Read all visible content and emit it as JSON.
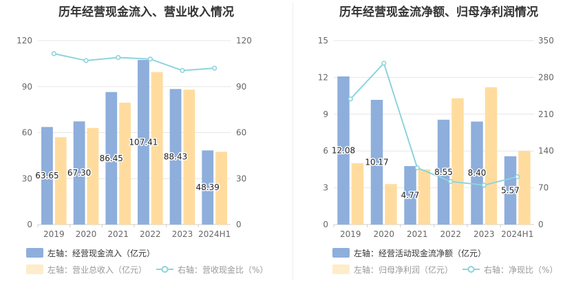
{
  "colors": {
    "bar1": "#8eaedc",
    "bar2": "#ffdc9e",
    "line": "#8dd3dc",
    "grid": "#e6e6e6",
    "axis_text": "#666666",
    "text": "#333333"
  },
  "chart_data": [
    {
      "type": "bar",
      "title": "历年经营现金流入、营业收入情况",
      "categories": [
        "2019",
        "2020",
        "2021",
        "2022",
        "2023",
        "2024H1"
      ],
      "y_left": {
        "min": 0,
        "max": 120,
        "ticks": [
          "0",
          "30",
          "60",
          "90",
          "120"
        ]
      },
      "y_right": {
        "min": 0,
        "max": 120,
        "ticks": [
          "0",
          "30",
          "60",
          "90",
          "120"
        ]
      },
      "series": [
        {
          "name": "左轴：经营现金流入（亿元）",
          "axis": "left",
          "kind": "bar",
          "values": [
            63.65,
            67.3,
            86.45,
            107.41,
            88.43,
            48.39
          ],
          "labels": [
            "63.65",
            "67.30",
            "86.45",
            "107.41",
            "88.43",
            "48.39"
          ]
        },
        {
          "name": "左轴：营业总收入（亿元）",
          "axis": "left",
          "kind": "bar",
          "values": [
            57,
            63,
            79.5,
            99.5,
            88,
            47.5
          ]
        },
        {
          "name": "右轴：营收现金比（%）",
          "axis": "right",
          "kind": "line",
          "values": [
            111.5,
            107,
            109,
            108,
            100.5,
            102
          ]
        }
      ]
    },
    {
      "type": "bar",
      "title": "历年经营现金流净额、归母净利润情况",
      "categories": [
        "2019",
        "2020",
        "2021",
        "2022",
        "2023",
        "2024H1"
      ],
      "y_left": {
        "min": 0,
        "max": 15,
        "ticks": [
          "0",
          "3",
          "6",
          "9",
          "12",
          "15"
        ]
      },
      "y_right": {
        "min": 0,
        "max": 350,
        "ticks": [
          "0",
          "70",
          "140",
          "210",
          "280",
          "350"
        ]
      },
      "series": [
        {
          "name": "左轴：经营活动现金流净额（亿元）",
          "axis": "left",
          "kind": "bar",
          "values": [
            12.08,
            10.17,
            4.77,
            8.55,
            8.4,
            5.57
          ],
          "labels": [
            "12.08",
            "10.17",
            "4.77",
            "8.55",
            "8.40",
            "5.57"
          ]
        },
        {
          "name": "左轴：归母净利润（亿元）",
          "axis": "left",
          "kind": "bar",
          "values": [
            5.0,
            3.3,
            4.5,
            10.3,
            11.2,
            6.0
          ]
        },
        {
          "name": "右轴：净现比（%）",
          "axis": "right",
          "kind": "line",
          "values": [
            239,
            307,
            108,
            82,
            75,
            91
          ]
        }
      ]
    }
  ]
}
